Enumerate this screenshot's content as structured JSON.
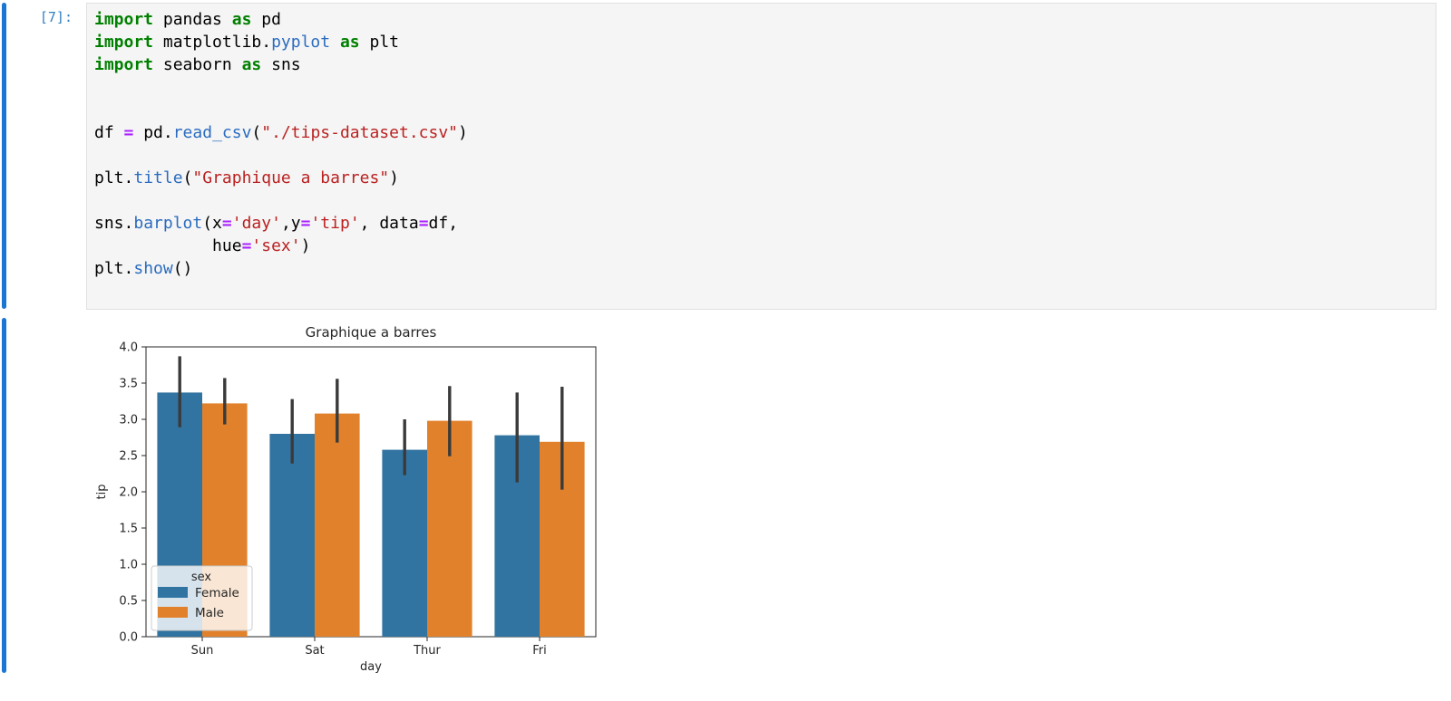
{
  "colors": {
    "collapser": "#1976d2",
    "prompt": "#307fc1",
    "cellbg": "#f5f5f5",
    "cellborder": "#e0e0e0",
    "keyword": "#008000",
    "property": "#2b6cbf",
    "string": "#ba2121",
    "operator": "#aa22ff",
    "text": "#000000"
  },
  "cell": {
    "execution_count": "[7]:",
    "code_lines": [
      [
        [
          "k",
          "import"
        ],
        [
          "t",
          " pandas "
        ],
        [
          "k",
          "as"
        ],
        [
          "t",
          " pd"
        ]
      ],
      [
        [
          "k",
          "import"
        ],
        [
          "t",
          " matplotlib."
        ],
        [
          "p",
          "pyplot"
        ],
        [
          "t",
          " "
        ],
        [
          "k",
          "as"
        ],
        [
          "t",
          " plt"
        ]
      ],
      [
        [
          "k",
          "import"
        ],
        [
          "t",
          " seaborn "
        ],
        [
          "k",
          "as"
        ],
        [
          "t",
          " sns"
        ]
      ],
      [],
      [],
      [
        [
          "t",
          "df "
        ],
        [
          "o",
          "="
        ],
        [
          "t",
          " pd."
        ],
        [
          "p",
          "read_csv"
        ],
        [
          "t",
          "("
        ],
        [
          "s",
          "\"./tips-dataset.csv\""
        ],
        [
          "t",
          ")"
        ]
      ],
      [],
      [
        [
          "t",
          "plt."
        ],
        [
          "p",
          "title"
        ],
        [
          "t",
          "("
        ],
        [
          "s",
          "\"Graphique a barres\""
        ],
        [
          "t",
          ")"
        ]
      ],
      [],
      [
        [
          "t",
          "sns."
        ],
        [
          "p",
          "barplot"
        ],
        [
          "t",
          "(x"
        ],
        [
          "o",
          "="
        ],
        [
          "s",
          "'day'"
        ],
        [
          "t",
          ",y"
        ],
        [
          "o",
          "="
        ],
        [
          "s",
          "'tip'"
        ],
        [
          "t",
          ", data"
        ],
        [
          "o",
          "="
        ],
        [
          "t",
          "df,"
        ]
      ],
      [
        [
          "t",
          "            hue"
        ],
        [
          "o",
          "="
        ],
        [
          "s",
          "'sex'"
        ],
        [
          "t",
          ")"
        ]
      ],
      [
        [
          "t",
          "plt."
        ],
        [
          "p",
          "show"
        ],
        [
          "t",
          "()"
        ]
      ]
    ]
  },
  "chart_data": {
    "type": "bar",
    "title": "Graphique a barres",
    "xlabel": "day",
    "ylabel": "tip",
    "categories": [
      "Sun",
      "Sat",
      "Thur",
      "Fri"
    ],
    "series": [
      {
        "name": "Female",
        "color": "#3274a1",
        "values": [
          3.37,
          2.8,
          2.58,
          2.78
        ],
        "ci": [
          [
            2.89,
            3.87
          ],
          [
            2.39,
            3.28
          ],
          [
            2.23,
            3.0
          ],
          [
            2.13,
            3.37
          ]
        ]
      },
      {
        "name": "Male",
        "color": "#e1812c",
        "values": [
          3.22,
          3.08,
          2.98,
          2.69
        ],
        "ci": [
          [
            2.93,
            3.57
          ],
          [
            2.68,
            3.56
          ],
          [
            2.49,
            3.46
          ],
          [
            2.03,
            3.45
          ]
        ]
      }
    ],
    "ylim": [
      0.0,
      4.0
    ],
    "ytick_step": 0.5,
    "grid": false,
    "legend": {
      "title": "sex",
      "position": "lower left"
    },
    "errorbar_color": "#3a3a3a",
    "axis_color": "#262626"
  }
}
